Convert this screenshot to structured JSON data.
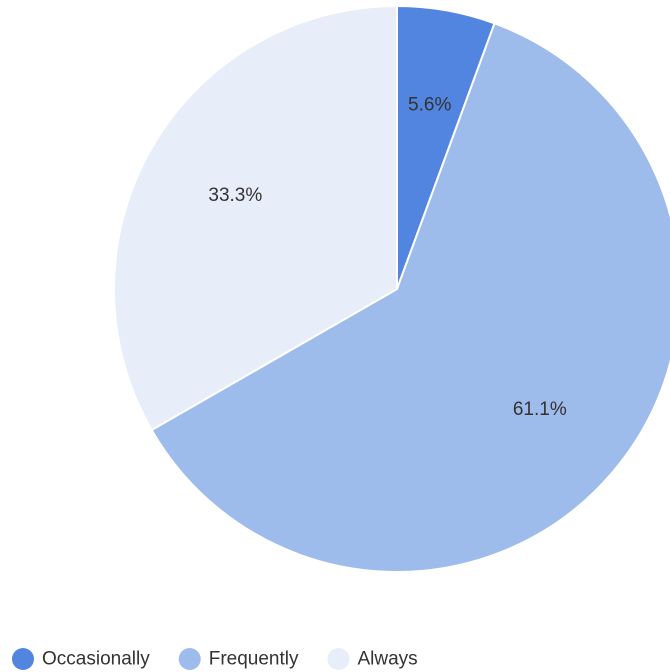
{
  "chart_data": {
    "type": "pie",
    "categories": [
      "Occasionally",
      "Frequently",
      "Always"
    ],
    "values": [
      5.6,
      61.1,
      33.3
    ],
    "value_labels": [
      "5.6%",
      "61.1%",
      "33.3%"
    ],
    "colors": [
      "#5185df",
      "#9dbbeb",
      "#e7edf9"
    ],
    "start_angle_deg": 0,
    "direction": "clockwise",
    "legend_position": "bottom-left"
  }
}
